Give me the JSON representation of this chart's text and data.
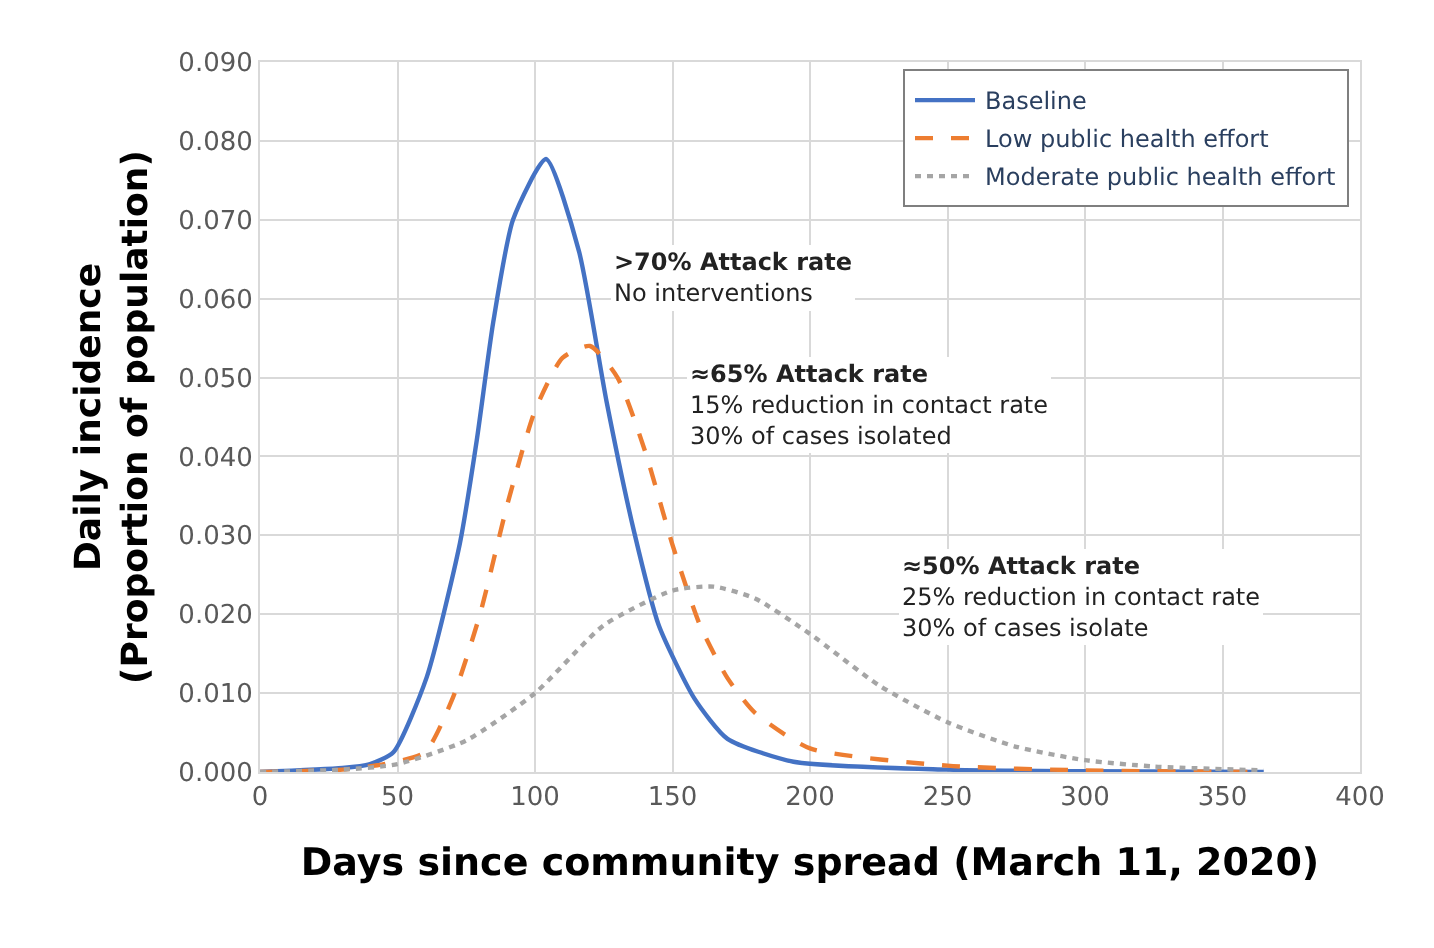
{
  "chart_data": {
    "type": "line",
    "xlabel": "Days since community spread (March 11, 2020)",
    "ylabel": "Daily incidence\n(Proportion of population)",
    "xlim": [
      0,
      400
    ],
    "xticks": [
      0,
      50,
      100,
      150,
      200,
      250,
      300,
      350,
      400
    ],
    "ylim": [
      0,
      0.09
    ],
    "yticks": [
      {
        "value": 0,
        "label": "0.000"
      },
      {
        "value": 0.01,
        "label": "0.010"
      },
      {
        "value": 0.02,
        "label": "0.020"
      },
      {
        "value": 0.03,
        "label": "0.030"
      },
      {
        "value": 0.04,
        "label": "0.040"
      },
      {
        "value": 0.05,
        "label": "0.050"
      },
      {
        "value": 0.06,
        "label": "0.060"
      },
      {
        "value": 0.07,
        "label": "0.070"
      },
      {
        "value": 0.08,
        "label": "0.080"
      },
      {
        "value": 0.09,
        "label": "0.090"
      }
    ],
    "grid": true,
    "legend": "top right",
    "marker": "none",
    "series": [
      {
        "name": "Baseline",
        "color": "#4472c4",
        "line_style": "solid",
        "x": [
          0,
          30,
          40,
          48.5,
          60.6,
          72.7,
          78.8,
          84.8,
          92,
          104,
          116,
          126,
          136,
          145,
          158,
          170,
          194,
          250,
          300,
          365
        ],
        "values": [
          0,
          0.0005,
          0.001,
          0.0025,
          0.012,
          0.029,
          0.042,
          0.057,
          0.07,
          0.0777,
          0.066,
          0.047,
          0.0305,
          0.0186,
          0.0093,
          0.0042,
          0.0013,
          0.0003,
          0.0001,
          0
        ]
      },
      {
        "name": "Low public health effort",
        "color": "#ed7d31",
        "line_style": "dashed",
        "x": [
          0,
          30,
          45,
          60,
          70,
          80,
          90,
          100,
          110,
          120,
          130,
          140,
          150,
          160,
          170,
          180,
          200,
          250,
          300,
          365
        ],
        "values": [
          0,
          0.0003,
          0.001,
          0.0025,
          0.0093,
          0.02,
          0.034,
          0.0458,
          0.0525,
          0.054,
          0.05,
          0.0407,
          0.0288,
          0.0186,
          0.0119,
          0.0075,
          0.003,
          0.0008,
          0.0002,
          0
        ]
      },
      {
        "name": "Moderate public health effort",
        "color": "#a5a5a5",
        "line_style": "dotted",
        "x": [
          0,
          30,
          50,
          75,
          100,
          125,
          150,
          165,
          180,
          200,
          225,
          250,
          275,
          300,
          325,
          365
        ],
        "values": [
          0,
          0.0003,
          0.001,
          0.004,
          0.01,
          0.0186,
          0.023,
          0.0235,
          0.022,
          0.0175,
          0.011,
          0.0063,
          0.0032,
          0.0015,
          0.0007,
          0.0002
        ]
      }
    ],
    "annotations": [
      ">70% Attack rate\nNo interventions",
      "≈65% Attack rate\n15% reduction in contact rate\n30% of cases isolated",
      "≈50% Attack rate\n25% reduction in contact rate\n30% of cases isolate"
    ]
  }
}
